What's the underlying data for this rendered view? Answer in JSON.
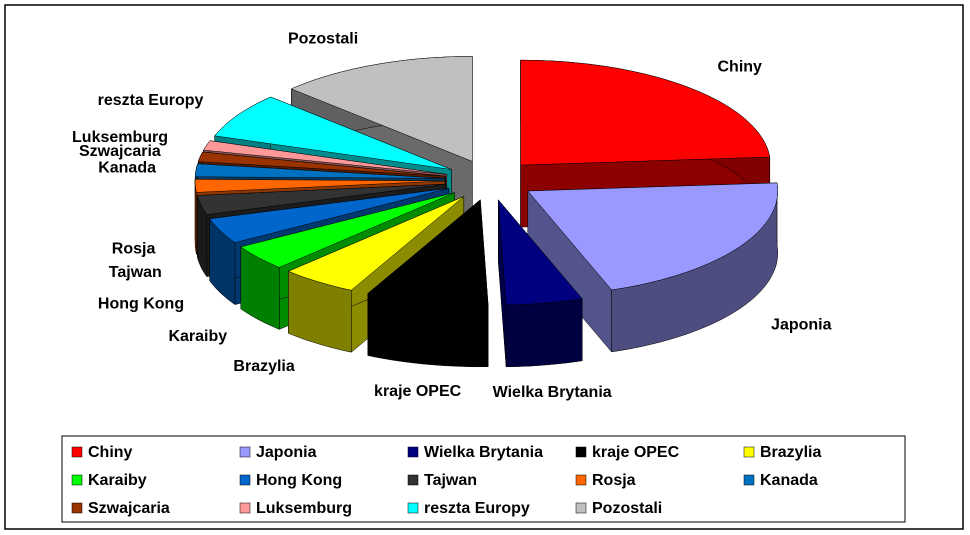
{
  "chart_data": {
    "type": "pie",
    "categories": [
      "Chiny",
      "Japonia",
      "Wielka Brytania",
      "kraje OPEC",
      "Brazylia",
      "Karaiby",
      "Hong Kong",
      "Tajwan",
      "Rosja",
      "Kanada",
      "Szwajcaria",
      "Luksemburg",
      "reszta Europy",
      "Pozostali"
    ],
    "values": [
      24,
      21,
      5,
      8,
      5,
      4,
      4,
      3,
      2,
      2,
      1.5,
      1.5,
      7,
      13
    ],
    "colors": [
      "#ff0000",
      "#9999ff",
      "#000080",
      "#000000",
      "#ffff00",
      "#00ff00",
      "#0066cc",
      "#333333",
      "#ff6600",
      "#0070c0",
      "#993300",
      "#ff9999",
      "#00ffff",
      "#c0c0c0"
    ],
    "legend": "bottom"
  }
}
